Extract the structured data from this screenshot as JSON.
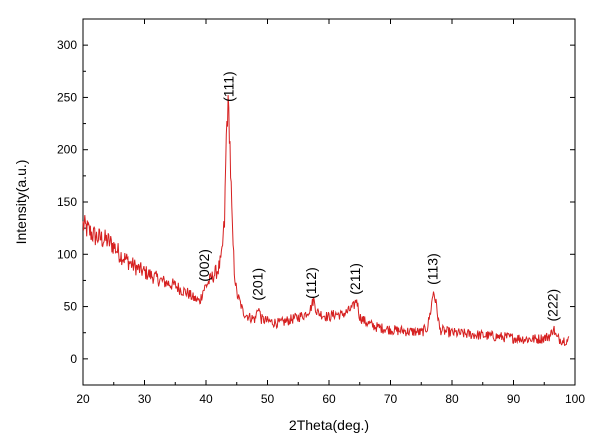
{
  "chart_data": {
    "type": "line",
    "title": "",
    "xlabel": "2Theta(deg.)",
    "ylabel": "Intensity(a.u.)",
    "xlim": [
      20,
      100
    ],
    "ylim": [
      -25,
      325
    ],
    "x_ticks": [
      20,
      30,
      40,
      50,
      60,
      70,
      80,
      90,
      100
    ],
    "y_ticks": [
      0,
      50,
      100,
      150,
      200,
      250,
      300
    ],
    "grid": false,
    "legend": "none",
    "line_color": "#d62020",
    "series": [
      {
        "x": [
          20,
          21,
          22,
          23,
          24,
          25,
          26,
          27,
          28,
          29,
          30,
          31,
          32,
          33,
          34,
          35,
          36,
          37,
          38,
          39,
          39.5,
          40,
          41,
          42,
          42.5,
          43,
          43.3,
          43.5,
          43.8,
          44,
          44.3,
          44.6,
          45,
          45.5,
          46,
          47,
          48,
          48.5,
          49,
          50,
          51,
          52,
          53,
          54,
          55,
          56,
          57,
          57.5,
          58,
          59,
          60,
          61,
          62,
          63,
          64,
          64.5,
          65,
          66,
          67,
          68,
          69,
          70,
          71,
          72,
          73,
          74,
          75,
          76,
          76.5,
          77,
          77.5,
          78,
          79,
          80,
          82,
          84,
          86,
          88,
          90,
          92,
          94,
          95,
          96,
          96.5,
          97,
          98,
          99
        ],
        "y": [
          128,
          122,
          117,
          115,
          113,
          108,
          100,
          95,
          90,
          86,
          83,
          80,
          77,
          74,
          72,
          70,
          66,
          63,
          58,
          55,
          65,
          70,
          78,
          86,
          95,
          130,
          210,
          240,
          225,
          180,
          120,
          85,
          62,
          55,
          45,
          40,
          38,
          50,
          38,
          36,
          35,
          34,
          36,
          38,
          40,
          42,
          48,
          57,
          45,
          42,
          40,
          43,
          42,
          45,
          50,
          57,
          40,
          35,
          32,
          30,
          29,
          28,
          27,
          27,
          26,
          26,
          25,
          30,
          45,
          65,
          50,
          28,
          26,
          25,
          24,
          23,
          22,
          21,
          20,
          19,
          19,
          20,
          22,
          30,
          20,
          18,
          18
        ]
      }
    ],
    "annotations": [
      {
        "text": "(111)",
        "x": 43.8
      },
      {
        "text": "(002)",
        "x": 39.8
      },
      {
        "text": "(201)",
        "x": 48.5
      },
      {
        "text": "(112)",
        "x": 57.2
      },
      {
        "text": "(211)",
        "x": 64.4
      },
      {
        "text": "(113)",
        "x": 77.0
      },
      {
        "text": "(222)",
        "x": 96.5
      }
    ]
  }
}
